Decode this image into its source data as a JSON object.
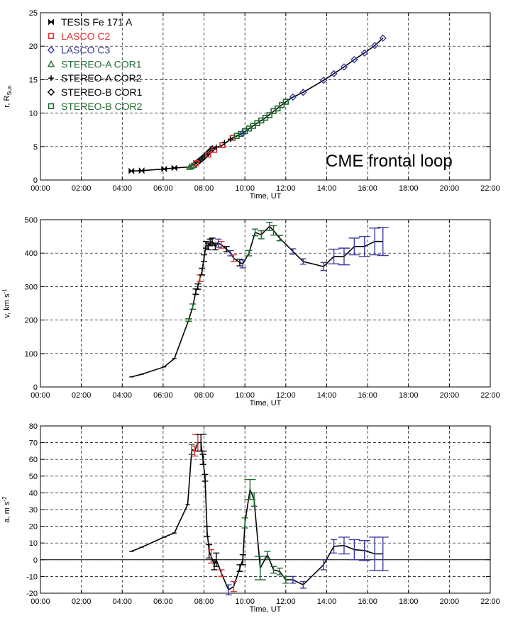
{
  "chart_data": [
    {
      "type": "line",
      "panel": "distance",
      "title": "",
      "xlabel": "Time, UT",
      "ylabel": "r, R",
      "ylabel_sub": "Sun",
      "xlim": [
        0,
        22
      ],
      "ylim": [
        0,
        25
      ],
      "x_ticks": [
        "00:00",
        "02:00",
        "04:00",
        "06:00",
        "08:00",
        "10:00",
        "12:00",
        "14:00",
        "16:00",
        "18:00",
        "20:00",
        "22:00"
      ],
      "y_ticks": [
        0,
        5,
        10,
        15,
        20,
        25
      ],
      "grid": true,
      "legend": "top-left",
      "annotation": "CME frontal loop",
      "legend_entries": [
        {
          "label": "TESIS Fe 171 A",
          "color": "#000000",
          "marker": "bowtie"
        },
        {
          "label": "LASCO C2",
          "color": "#e03030",
          "marker": "square"
        },
        {
          "label": "LASCO C3",
          "color": "#3a3aa0",
          "marker": "diamond"
        },
        {
          "label": "STEREO-A COR1",
          "color": "#1e6b2e",
          "marker": "triangle"
        },
        {
          "label": "STEREO-A COR2",
          "color": "#000000",
          "marker": "plus"
        },
        {
          "label": "STEREO-B COR1",
          "color": "#000000",
          "marker": "diamond"
        },
        {
          "label": "STEREO-B COR2",
          "color": "#1e6b2e",
          "marker": "square"
        }
      ],
      "series": [
        {
          "instrument": "TESIS Fe 171 A",
          "color": "#000000",
          "marker": "bowtie",
          "x": [
            4.45,
            4.95,
            6.05,
            6.55
          ],
          "y": [
            1.35,
            1.4,
            1.65,
            1.8
          ]
        },
        {
          "instrument": "STEREO-A COR1",
          "color": "#1e6b2e",
          "marker": "triangle",
          "x": [
            7.3,
            7.4,
            7.5
          ],
          "y": [
            1.95,
            2.1,
            2.25
          ]
        },
        {
          "instrument": "STEREO-B COR1",
          "color": "#000000",
          "marker": "diamond",
          "x": [
            7.6,
            7.7,
            7.8,
            7.9,
            8.0,
            8.1,
            8.2,
            8.3,
            8.4
          ],
          "y": [
            2.45,
            2.7,
            2.95,
            3.2,
            3.45,
            3.75,
            4.05,
            4.35,
            4.65
          ]
        },
        {
          "instrument": "LASCO C2",
          "color": "#e03030",
          "marker": "square",
          "x": [
            7.6,
            8.2,
            8.5,
            8.9,
            9.4
          ],
          "y": [
            2.5,
            3.8,
            4.5,
            5.2,
            6.3
          ]
        },
        {
          "instrument": "STEREO-A COR2",
          "color": "#000000",
          "marker": "plus",
          "x": [
            8.6,
            9.0,
            9.3
          ],
          "y": [
            4.9,
            5.6,
            6.1
          ]
        },
        {
          "instrument": "STEREO-B COR2",
          "color": "#1e6b2e",
          "marker": "square",
          "x": [
            9.6,
            9.8,
            10.0,
            10.2,
            10.4,
            10.6,
            10.8,
            11.0,
            11.2,
            11.4,
            11.6,
            11.8,
            12.0
          ],
          "y": [
            6.6,
            6.9,
            7.3,
            7.7,
            8.1,
            8.5,
            8.9,
            9.3,
            9.7,
            10.3,
            10.7,
            11.2,
            11.7
          ]
        },
        {
          "instrument": "LASCO C3",
          "color": "#3a3aa0",
          "marker": "diamond",
          "x": [
            9.9,
            12.35,
            12.85,
            13.85,
            14.35,
            14.85,
            15.35,
            15.85,
            16.35,
            16.75
          ],
          "y": [
            7.0,
            12.4,
            13.1,
            14.9,
            15.9,
            16.9,
            18.0,
            19.0,
            20.1,
            21.2
          ]
        }
      ],
      "curve": {
        "x": [
          4.45,
          4.95,
          6.05,
          6.55,
          7.3,
          7.6,
          8.0,
          8.4,
          8.9,
          9.4,
          9.9,
          10.4,
          11.0,
          12.0,
          12.35,
          12.85,
          13.85,
          14.35,
          14.85,
          15.35,
          15.85,
          16.35,
          16.75
        ],
        "y": [
          1.35,
          1.4,
          1.65,
          1.8,
          1.95,
          2.5,
          3.45,
          4.65,
          5.2,
          6.3,
          7.0,
          8.1,
          9.3,
          11.7,
          12.4,
          13.1,
          14.9,
          15.9,
          16.9,
          18.0,
          19.0,
          20.1,
          21.2
        ]
      }
    },
    {
      "type": "line",
      "panel": "velocity",
      "title": "",
      "xlabel": "Time, UT",
      "ylabel": "v, km s",
      "ylabel_sup": "-1",
      "xlim": [
        0,
        22
      ],
      "ylim": [
        0,
        500
      ],
      "x_ticks": [
        "00:00",
        "02:00",
        "04:00",
        "06:00",
        "08:00",
        "10:00",
        "12:00",
        "14:00",
        "16:00",
        "18:00",
        "20:00",
        "22:00"
      ],
      "y_ticks": [
        0,
        100,
        200,
        300,
        400,
        500
      ],
      "grid": true,
      "points": [
        {
          "x": 4.45,
          "y": 30,
          "err": 0,
          "color": "#000000"
        },
        {
          "x": 4.95,
          "y": 38,
          "err": 0,
          "color": "#000000"
        },
        {
          "x": 6.05,
          "y": 60,
          "err": 0,
          "color": "#000000"
        },
        {
          "x": 6.55,
          "y": 85,
          "err": 0,
          "color": "#000000"
        },
        {
          "x": 7.25,
          "y": 200,
          "err": 4,
          "color": "#1e6b2e"
        },
        {
          "x": 7.45,
          "y": 240,
          "err": 8,
          "color": "#1e6b2e"
        },
        {
          "x": 7.6,
          "y": 285,
          "err": 8,
          "color": "#000000"
        },
        {
          "x": 7.7,
          "y": 300,
          "err": 8,
          "color": "#000000"
        },
        {
          "x": 7.8,
          "y": 325,
          "err": 10,
          "color": "#e03030"
        },
        {
          "x": 7.9,
          "y": 345,
          "err": 10,
          "color": "#000000"
        },
        {
          "x": 8.0,
          "y": 385,
          "err": 10,
          "color": "#000000"
        },
        {
          "x": 8.1,
          "y": 425,
          "err": 10,
          "color": "#000000"
        },
        {
          "x": 8.2,
          "y": 420,
          "err": 10,
          "color": "#000000"
        },
        {
          "x": 8.3,
          "y": 432,
          "err": 10,
          "color": "#000000"
        },
        {
          "x": 8.4,
          "y": 435,
          "err": 10,
          "color": "#000000"
        },
        {
          "x": 8.55,
          "y": 420,
          "err": 10,
          "color": "#000000"
        },
        {
          "x": 8.7,
          "y": 430,
          "err": 12,
          "color": "#3a3aa0"
        },
        {
          "x": 8.85,
          "y": 425,
          "err": 10,
          "color": "#e03030"
        },
        {
          "x": 9.1,
          "y": 412,
          "err": 8,
          "color": "#000000"
        },
        {
          "x": 9.3,
          "y": 400,
          "err": 8,
          "color": "#3a3aa0"
        },
        {
          "x": 9.45,
          "y": 385,
          "err": 10,
          "color": "#e03030"
        },
        {
          "x": 9.75,
          "y": 372,
          "err": 10,
          "color": "#000000"
        },
        {
          "x": 9.9,
          "y": 368,
          "err": 12,
          "color": "#3a3aa0"
        },
        {
          "x": 10.2,
          "y": 400,
          "err": 8,
          "color": "#1e6b2e"
        },
        {
          "x": 10.5,
          "y": 462,
          "err": 10,
          "color": "#1e6b2e"
        },
        {
          "x": 10.8,
          "y": 455,
          "err": 12,
          "color": "#1e6b2e"
        },
        {
          "x": 11.2,
          "y": 480,
          "err": 12,
          "color": "#1e6b2e"
        },
        {
          "x": 11.4,
          "y": 468,
          "err": 14,
          "color": "#1e6b2e"
        },
        {
          "x": 11.7,
          "y": 445,
          "err": 8,
          "color": "#1e6b2e"
        },
        {
          "x": 12.35,
          "y": 405,
          "err": 8,
          "color": "#3a3aa0"
        },
        {
          "x": 12.85,
          "y": 375,
          "err": 8,
          "color": "#3a3aa0"
        },
        {
          "x": 13.85,
          "y": 360,
          "err": 12,
          "color": "#3a3aa0"
        },
        {
          "x": 14.35,
          "y": 390,
          "err": 22,
          "color": "#3a3aa0"
        },
        {
          "x": 14.85,
          "y": 390,
          "err": 25,
          "color": "#3a3aa0"
        },
        {
          "x": 15.35,
          "y": 420,
          "err": 25,
          "color": "#3a3aa0"
        },
        {
          "x": 15.85,
          "y": 420,
          "err": 30,
          "color": "#3a3aa0"
        },
        {
          "x": 16.35,
          "y": 435,
          "err": 40,
          "color": "#3a3aa0"
        },
        {
          "x": 16.75,
          "y": 435,
          "err": 42,
          "color": "#3a3aa0"
        }
      ]
    },
    {
      "type": "line",
      "panel": "acceleration",
      "title": "",
      "xlabel": "Time, UT",
      "ylabel": "a, m s",
      "ylabel_sup": "-2",
      "xlim": [
        0,
        22
      ],
      "ylim": [
        -20,
        80
      ],
      "x_ticks": [
        "00:00",
        "02:00",
        "04:00",
        "06:00",
        "08:00",
        "10:00",
        "12:00",
        "14:00",
        "16:00",
        "18:00",
        "20:00",
        "22:00"
      ],
      "y_ticks": [
        -20,
        -10,
        0,
        10,
        20,
        30,
        40,
        50,
        60,
        70,
        80
      ],
      "grid": true,
      "zero_line": true,
      "points": [
        {
          "x": 4.45,
          "y": 5,
          "err": 0,
          "color": "#000000"
        },
        {
          "x": 4.95,
          "y": 7.5,
          "err": 0,
          "color": "#000000"
        },
        {
          "x": 6.05,
          "y": 13.5,
          "err": 0,
          "color": "#000000"
        },
        {
          "x": 6.55,
          "y": 16,
          "err": 0,
          "color": "#000000"
        },
        {
          "x": 7.2,
          "y": 33,
          "err": 0,
          "color": "#000000"
        },
        {
          "x": 7.4,
          "y": 66,
          "err": 3,
          "color": "#1e6b2e"
        },
        {
          "x": 7.55,
          "y": 65,
          "err": 3,
          "color": "#e03030"
        },
        {
          "x": 7.7,
          "y": 70,
          "err": 5,
          "color": "#e03030"
        },
        {
          "x": 7.85,
          "y": 70,
          "err": 5,
          "color": "#000000"
        },
        {
          "x": 7.95,
          "y": 60,
          "err": 3,
          "color": "#000000"
        },
        {
          "x": 8.05,
          "y": 49,
          "err": 2,
          "color": "#000000"
        },
        {
          "x": 8.15,
          "y": 17,
          "err": 3,
          "color": "#000000"
        },
        {
          "x": 8.25,
          "y": 5,
          "err": 4,
          "color": "#000000"
        },
        {
          "x": 8.35,
          "y": 2,
          "err": 4,
          "color": "#e03030"
        },
        {
          "x": 8.5,
          "y": -3,
          "err": 3,
          "color": "#000000"
        },
        {
          "x": 8.6,
          "y": 0,
          "err": 4,
          "color": "#000000"
        },
        {
          "x": 8.85,
          "y": -8,
          "err": 2,
          "color": "#e03030"
        },
        {
          "x": 9.2,
          "y": -18,
          "err": 3,
          "color": "#3a3aa0"
        },
        {
          "x": 9.45,
          "y": -16,
          "err": 3,
          "color": "#e03030"
        },
        {
          "x": 9.75,
          "y": -5,
          "err": 2,
          "color": "#000000"
        },
        {
          "x": 9.9,
          "y": 0,
          "err": 3,
          "color": "#000000"
        },
        {
          "x": 10.0,
          "y": 22,
          "err": 3,
          "color": "#1e6b2e"
        },
        {
          "x": 10.25,
          "y": 42,
          "err": 6,
          "color": "#1e6b2e"
        },
        {
          "x": 10.45,
          "y": 36,
          "err": 4,
          "color": "#1e6b2e"
        },
        {
          "x": 10.75,
          "y": -5,
          "err": 7,
          "color": "#1e6b2e"
        },
        {
          "x": 11.1,
          "y": 3,
          "err": 2,
          "color": "#1e6b2e"
        },
        {
          "x": 11.4,
          "y": -6,
          "err": 2,
          "color": "#1e6b2e"
        },
        {
          "x": 11.7,
          "y": -7,
          "err": 2,
          "color": "#1e6b2e"
        },
        {
          "x": 12.0,
          "y": -12,
          "err": 2,
          "color": "#1e6b2e"
        },
        {
          "x": 12.35,
          "y": -12,
          "err": 2,
          "color": "#3a3aa0"
        },
        {
          "x": 12.85,
          "y": -15,
          "err": 2,
          "color": "#3a3aa0"
        },
        {
          "x": 13.85,
          "y": -3,
          "err": 3,
          "color": "#3a3aa0"
        },
        {
          "x": 14.35,
          "y": 8,
          "err": 4,
          "color": "#3a3aa0"
        },
        {
          "x": 14.85,
          "y": 8.5,
          "err": 5,
          "color": "#3a3aa0"
        },
        {
          "x": 15.35,
          "y": 6,
          "err": 6,
          "color": "#3a3aa0"
        },
        {
          "x": 15.85,
          "y": 5.5,
          "err": 6,
          "color": "#3a3aa0"
        },
        {
          "x": 16.35,
          "y": 3.5,
          "err": 10,
          "color": "#3a3aa0"
        },
        {
          "x": 16.75,
          "y": 3.5,
          "err": 10,
          "color": "#3a3aa0"
        }
      ]
    }
  ]
}
